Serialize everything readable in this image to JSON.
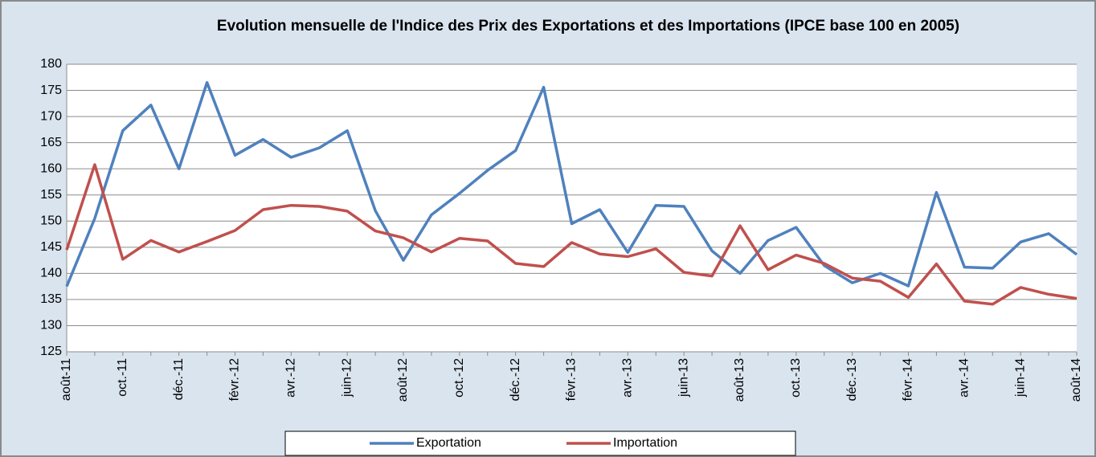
{
  "chart_data": {
    "type": "line",
    "title": "Evolution mensuelle de l'Indice des Prix des Exportations et des Importations (IPCE base 100 en 2005)",
    "categories": [
      "août-11",
      null,
      "oct.-11",
      null,
      "déc.-11",
      null,
      "févr.-12",
      null,
      "avr.-12",
      null,
      "juin-12",
      null,
      "août-12",
      null,
      "oct.-12",
      null,
      "déc.-12",
      null,
      "févr.-13",
      null,
      "avr.-13",
      null,
      "juin-13",
      null,
      "août-13",
      null,
      "oct.-13",
      null,
      "déc.-13",
      null,
      "févr.-14",
      null,
      "avr.-14",
      null,
      "juin-14",
      null,
      "août-14"
    ],
    "series": [
      {
        "name": "Exportation",
        "color": "#4f81bd",
        "values": [
          137.5,
          150.5,
          167.3,
          172.2,
          160,
          176.5,
          162.6,
          165.6,
          162.2,
          164,
          167.3,
          152,
          142.5,
          151.2,
          155.3,
          159.7,
          163.5,
          175.6,
          149.5,
          152.2,
          144,
          153,
          152.8,
          144.3,
          140,
          146.3,
          148.8,
          141.5,
          138.2,
          140,
          137.6,
          155.5,
          141.2,
          141,
          146,
          147.6,
          143.6
        ]
      },
      {
        "name": "Importation",
        "color": "#c0504d",
        "values": [
          144.5,
          160.8,
          142.7,
          146.3,
          144.1,
          146.1,
          148.2,
          152.2,
          153,
          152.8,
          151.9,
          148.1,
          146.8,
          144.1,
          146.7,
          146.2,
          141.9,
          141.3,
          145.9,
          143.7,
          143.2,
          144.7,
          140.2,
          139.5,
          149.1,
          140.7,
          143.5,
          141.9,
          139.1,
          138.5,
          135.4,
          141.8,
          134.7,
          134.1,
          137.3,
          136,
          135.2
        ]
      }
    ],
    "ylim": [
      125,
      180
    ],
    "yticks": [
      125,
      130,
      135,
      140,
      145,
      150,
      155,
      160,
      165,
      170,
      175,
      180
    ],
    "grid": true,
    "legend": "bottom"
  }
}
